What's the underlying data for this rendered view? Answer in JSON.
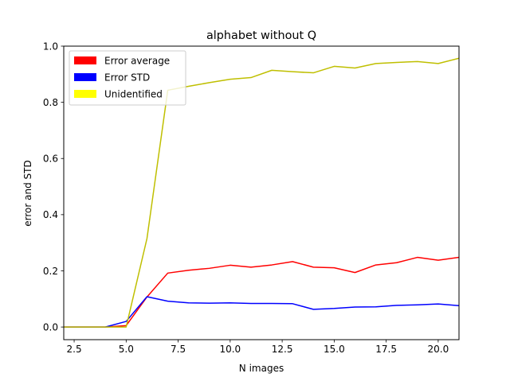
{
  "chart_data": {
    "type": "line",
    "title": "alphabet without Q",
    "xlabel": "N images",
    "ylabel": "error and STD",
    "xlim": [
      2.0,
      21.0
    ],
    "ylim": [
      -0.045,
      1.0
    ],
    "xticks": [
      2.5,
      5.0,
      7.5,
      10.0,
      12.5,
      15.0,
      17.5,
      20.0
    ],
    "xtick_labels": [
      "2.5",
      "5.0",
      "7.5",
      "10.0",
      "12.5",
      "15.0",
      "17.5",
      "20.0"
    ],
    "yticks": [
      0.0,
      0.2,
      0.4,
      0.6,
      0.8,
      1.0
    ],
    "ytick_labels": [
      "0.0",
      "0.2",
      "0.4",
      "0.6",
      "0.8",
      "1.0"
    ],
    "grid": false,
    "legend_position": "upper-left",
    "x": [
      2,
      3,
      4,
      5,
      6,
      7,
      8,
      9,
      10,
      11,
      12,
      13,
      14,
      15,
      16,
      17,
      18,
      19,
      20,
      21
    ],
    "series": [
      {
        "name": "Error average",
        "color": "#ff0000",
        "values": [
          0.0,
          0.0,
          0.0,
          0.005,
          0.107,
          0.192,
          0.202,
          0.209,
          0.22,
          0.213,
          0.221,
          0.233,
          0.213,
          0.211,
          0.194,
          0.221,
          0.229,
          0.248,
          0.238,
          0.248
        ]
      },
      {
        "name": "Error STD",
        "color": "#0000ff",
        "values": [
          0.0,
          0.0,
          0.0,
          0.02,
          0.108,
          0.092,
          0.086,
          0.085,
          0.086,
          0.084,
          0.084,
          0.083,
          0.063,
          0.066,
          0.071,
          0.072,
          0.077,
          0.079,
          0.082,
          0.076
        ]
      },
      {
        "name": "Unidentified",
        "color": "#bfbf00",
        "legend_color": "#ffff00",
        "values": [
          0.0,
          0.0,
          0.0,
          0.0,
          0.315,
          0.843,
          0.857,
          0.87,
          0.882,
          0.888,
          0.914,
          0.909,
          0.905,
          0.928,
          0.922,
          0.938,
          0.942,
          0.945,
          0.938,
          0.957
        ]
      }
    ]
  }
}
